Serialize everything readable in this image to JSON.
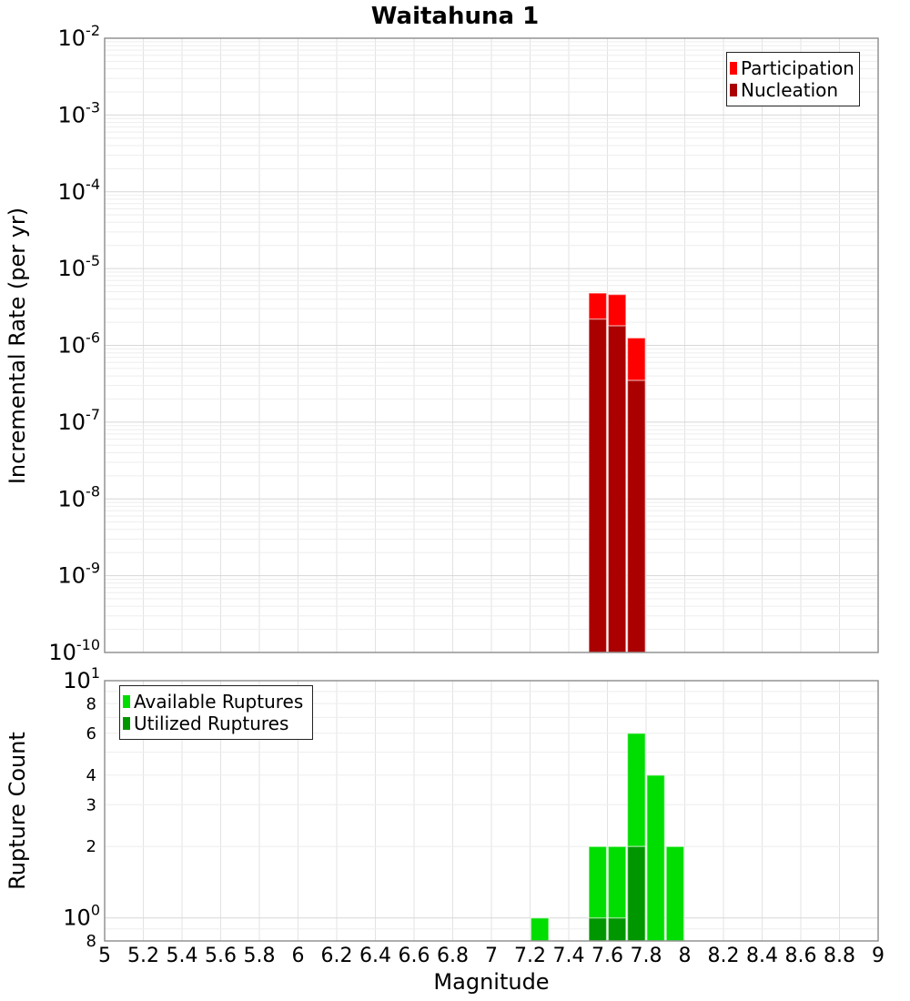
{
  "title": "Waitahuna 1",
  "colors": {
    "participation": "#ff0000",
    "nucleation": "#aa0000",
    "available": "#00dd00",
    "utilized": "#009600",
    "grid_major": "#d7d7d7",
    "grid_minor": "#eeeeee",
    "frame": "#8c8c8c"
  },
  "axes": {
    "x": {
      "label": "Magnitude",
      "min": 5,
      "max": 9,
      "tick_values": [
        5,
        5.2,
        5.4,
        5.6,
        5.8,
        6,
        6.2,
        6.4,
        6.6,
        6.8,
        7,
        7.2,
        7.4,
        7.6,
        7.8,
        8,
        8.2,
        8.4,
        8.6,
        8.8,
        9
      ],
      "tick_labels": [
        "5",
        "5.2",
        "5.4",
        "5.6",
        "5.8",
        "6",
        "6.2",
        "6.4",
        "6.6",
        "6.8",
        "7",
        "7.2",
        "7.4",
        "7.6",
        "7.8",
        "8",
        "8.2",
        "8.4",
        "8.6",
        "8.8",
        "9"
      ]
    },
    "top_y": {
      "label": "Incremental Rate (per yr)",
      "scale": "log",
      "tick_exponents": [
        -2,
        -3,
        -4,
        -5,
        -6,
        -7,
        -8,
        -9,
        -10
      ]
    },
    "bottom_y": {
      "label": "Rupture Count",
      "scale": "log",
      "major_exponents": [
        1,
        0
      ],
      "minor_ticks": [
        {
          "value": 8,
          "label": "8"
        },
        {
          "value": 6,
          "label": "6"
        },
        {
          "value": 4,
          "label": "4"
        },
        {
          "value": 3,
          "label": "3"
        },
        {
          "value": 2,
          "label": "2"
        },
        {
          "value": 0.8,
          "label": "8"
        }
      ]
    }
  },
  "chart_data": [
    {
      "type": "bar",
      "title": "Waitahuna 1",
      "ylabel": "Incremental Rate (per yr)",
      "yscale": "log",
      "ylim": [
        1e-10,
        0.01
      ],
      "xlim": [
        5,
        9
      ],
      "bar_width": 0.1,
      "grid": true,
      "legend_position": "top-right",
      "series": [
        {
          "name": "Participation",
          "color": "#ff0000",
          "x": [
            7.55,
            7.65,
            7.75
          ],
          "values": [
            4.8e-06,
            4.6e-06,
            1.25e-06
          ]
        },
        {
          "name": "Nucleation",
          "color": "#aa0000",
          "x": [
            7.55,
            7.65,
            7.75
          ],
          "values": [
            2.2e-06,
            1.8e-06,
            3.5e-07
          ]
        }
      ]
    },
    {
      "type": "bar",
      "ylabel": "Rupture Count",
      "xlabel": "Magnitude",
      "yscale": "log",
      "ylim": [
        0.8,
        10
      ],
      "xlim": [
        5,
        9
      ],
      "bar_width": 0.1,
      "grid": true,
      "legend_position": "top-left",
      "series": [
        {
          "name": "Available Ruptures",
          "color": "#00dd00",
          "x": [
            7.25,
            7.55,
            7.65,
            7.75,
            7.85,
            7.95
          ],
          "values": [
            1,
            2,
            2,
            6,
            4,
            2
          ]
        },
        {
          "name": "Utilized Ruptures",
          "color": "#009600",
          "x": [
            7.55,
            7.65,
            7.75
          ],
          "values": [
            1,
            1,
            2
          ]
        }
      ]
    }
  ]
}
